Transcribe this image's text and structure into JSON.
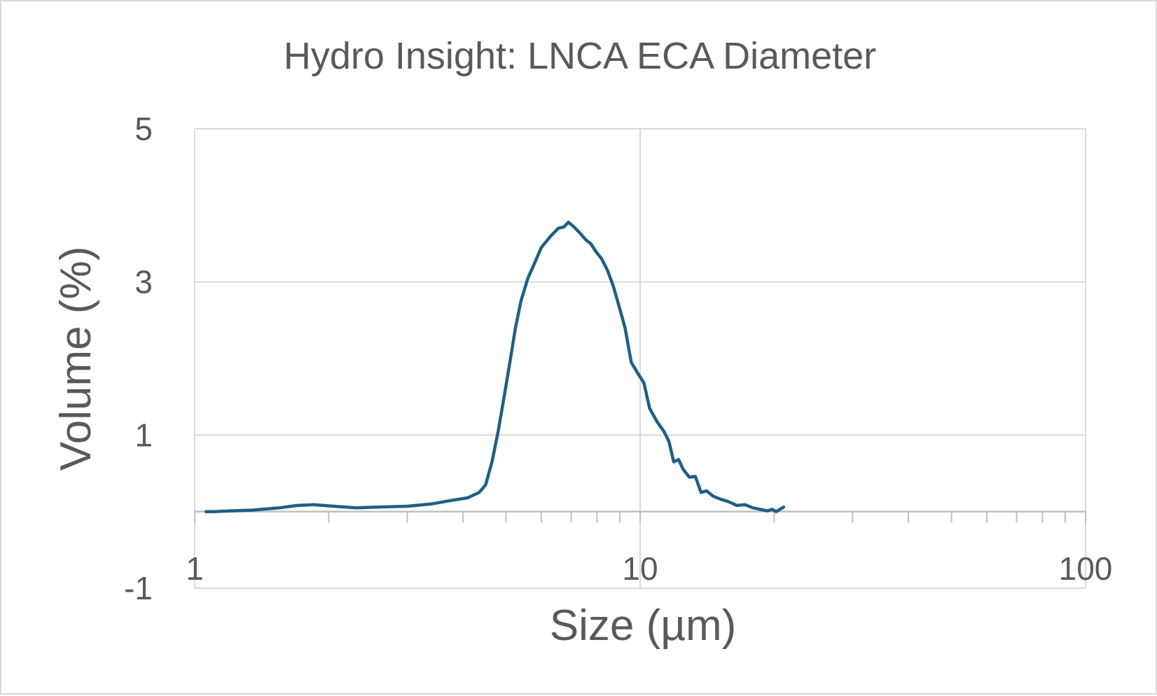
{
  "chart_data": {
    "type": "line",
    "title": "Hydro Insight: LNCA ECA Diameter",
    "xlabel": "Size (µm)",
    "ylabel": "Volume (%)",
    "x_scale": "log",
    "xlim": [
      1,
      100
    ],
    "ylim": [
      -1,
      5
    ],
    "x_crosses_y_at": 0,
    "x_ticks": [
      {
        "value": 1,
        "label": "1"
      },
      {
        "value": 10,
        "label": "10"
      },
      {
        "value": 100,
        "label": "100"
      }
    ],
    "y_ticks": [
      {
        "value": 5,
        "label": "5"
      },
      {
        "value": 3,
        "label": "3"
      },
      {
        "value": 1,
        "label": "1"
      },
      {
        "value": -1,
        "label": "-1"
      }
    ],
    "grid": true,
    "legend": "none",
    "series": [
      {
        "color": "#1f5f84",
        "points": [
          [
            1.06,
            0.0
          ],
          [
            1.1,
            0.0
          ],
          [
            1.2,
            0.01
          ],
          [
            1.35,
            0.02
          ],
          [
            1.55,
            0.05
          ],
          [
            1.7,
            0.08
          ],
          [
            1.85,
            0.09
          ],
          [
            2.05,
            0.07
          ],
          [
            2.3,
            0.05
          ],
          [
            2.6,
            0.06
          ],
          [
            3.0,
            0.07
          ],
          [
            3.4,
            0.1
          ],
          [
            3.8,
            0.15
          ],
          [
            4.1,
            0.18
          ],
          [
            4.35,
            0.25
          ],
          [
            4.5,
            0.35
          ],
          [
            4.65,
            0.65
          ],
          [
            4.8,
            1.05
          ],
          [
            4.95,
            1.5
          ],
          [
            5.1,
            1.95
          ],
          [
            5.25,
            2.4
          ],
          [
            5.4,
            2.75
          ],
          [
            5.6,
            3.05
          ],
          [
            5.8,
            3.25
          ],
          [
            6.0,
            3.45
          ],
          [
            6.3,
            3.6
          ],
          [
            6.55,
            3.7
          ],
          [
            6.75,
            3.72
          ],
          [
            6.9,
            3.78
          ],
          [
            7.1,
            3.72
          ],
          [
            7.35,
            3.63
          ],
          [
            7.55,
            3.55
          ],
          [
            7.75,
            3.5
          ],
          [
            7.95,
            3.4
          ],
          [
            8.2,
            3.3
          ],
          [
            8.45,
            3.15
          ],
          [
            8.7,
            2.95
          ],
          [
            8.95,
            2.7
          ],
          [
            9.25,
            2.4
          ],
          [
            9.55,
            1.95
          ],
          [
            9.9,
            1.8
          ],
          [
            10.2,
            1.68
          ],
          [
            10.5,
            1.35
          ],
          [
            10.9,
            1.18
          ],
          [
            11.3,
            1.05
          ],
          [
            11.6,
            0.92
          ],
          [
            11.9,
            0.65
          ],
          [
            12.2,
            0.68
          ],
          [
            12.5,
            0.55
          ],
          [
            12.9,
            0.45
          ],
          [
            13.3,
            0.46
          ],
          [
            13.7,
            0.25
          ],
          [
            14.1,
            0.27
          ],
          [
            14.6,
            0.2
          ],
          [
            15.2,
            0.16
          ],
          [
            15.8,
            0.13
          ],
          [
            16.5,
            0.08
          ],
          [
            17.2,
            0.09
          ],
          [
            17.9,
            0.05
          ],
          [
            18.6,
            0.03
          ],
          [
            19.3,
            0.01
          ],
          [
            19.8,
            0.03
          ],
          [
            20.2,
            0.0
          ],
          [
            20.6,
            0.03
          ],
          [
            21.0,
            0.06
          ]
        ]
      }
    ]
  }
}
